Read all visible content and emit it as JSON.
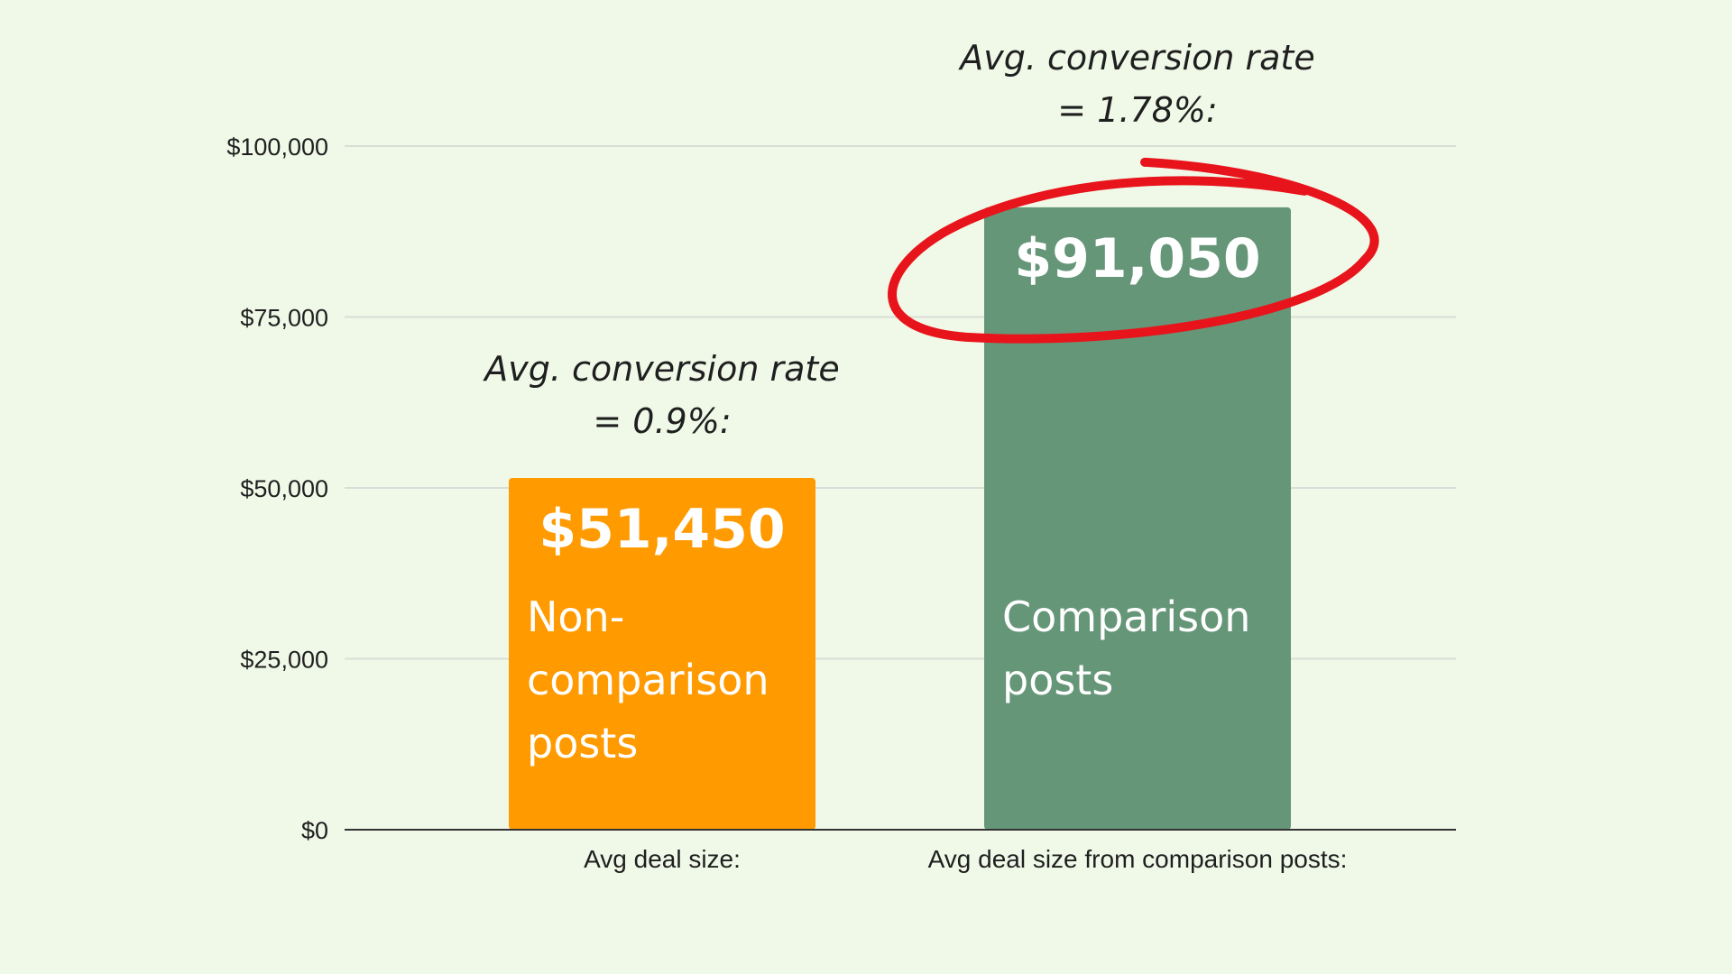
{
  "chart_data": {
    "type": "bar",
    "categories": [
      "Avg deal size:",
      "Avg deal size from comparison posts:"
    ],
    "values": [
      51450,
      91050
    ],
    "value_labels": [
      "$51,450",
      "$91,050"
    ],
    "bar_labels": [
      [
        "Non-",
        "comparison",
        "posts"
      ],
      [
        "Comparison",
        "posts"
      ]
    ],
    "annotations": [
      [
        "Avg. conversion rate",
        "= 0.9%:"
      ],
      [
        "Avg. conversion rate",
        "= 1.78%:"
      ]
    ],
    "y_ticks": [
      0,
      25000,
      50000,
      75000,
      100000
    ],
    "y_tick_labels": [
      "$0",
      "$25,000",
      "$50,000",
      "$75,000",
      "$100,000"
    ],
    "ylim": [
      0,
      100000
    ],
    "grid": true,
    "highlight": "second bar value circled",
    "colors": {
      "background": "#f0f9e8",
      "bars": [
        "#ff9a00",
        "#659678"
      ],
      "highlight_ring": "#e8141b",
      "gridline": "#dadcd6",
      "baseline": "#333333"
    }
  }
}
